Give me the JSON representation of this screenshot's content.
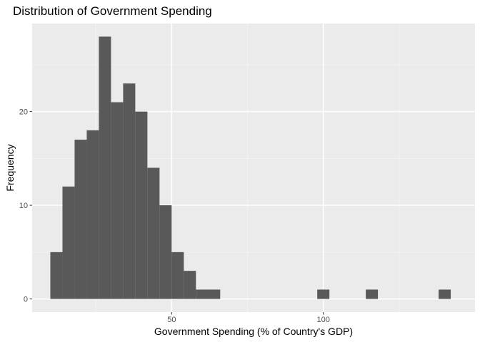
{
  "chart_data": {
    "type": "bar",
    "subtype": "histogram",
    "title": "Distribution of Government Spending",
    "xlabel": "Government Spending (% of Country's GDP)",
    "ylabel": "Frequency",
    "xlim": [
      4,
      150
    ],
    "ylim": [
      -1.4,
      29.4
    ],
    "x_ticks": [
      50,
      100
    ],
    "y_ticks": [
      0,
      10,
      20
    ],
    "x_tick_labels": [
      "50",
      "100"
    ],
    "y_tick_labels": [
      "0",
      "10",
      "20"
    ],
    "bin_width": 4,
    "grid": true,
    "legend": "none",
    "colors": {
      "bar": "#595959",
      "panel": "#ebebeb",
      "grid_major": "#ffffff",
      "grid_minor": "#f5f5f5",
      "tick_label": "#4d4d4d"
    },
    "bins": [
      {
        "x0": 10,
        "x1": 14,
        "count": 5
      },
      {
        "x0": 14,
        "x1": 18,
        "count": 12
      },
      {
        "x0": 18,
        "x1": 22,
        "count": 17
      },
      {
        "x0": 22,
        "x1": 26,
        "count": 18
      },
      {
        "x0": 26,
        "x1": 30,
        "count": 28
      },
      {
        "x0": 30,
        "x1": 34,
        "count": 21
      },
      {
        "x0": 34,
        "x1": 38,
        "count": 23
      },
      {
        "x0": 38,
        "x1": 42,
        "count": 20
      },
      {
        "x0": 42,
        "x1": 46,
        "count": 14
      },
      {
        "x0": 46,
        "x1": 50,
        "count": 10
      },
      {
        "x0": 50,
        "x1": 54,
        "count": 5
      },
      {
        "x0": 54,
        "x1": 58,
        "count": 3
      },
      {
        "x0": 58,
        "x1": 66,
        "count": 1
      },
      {
        "x0": 98,
        "x1": 102,
        "count": 1
      },
      {
        "x0": 114,
        "x1": 118,
        "count": 1
      },
      {
        "x0": 138,
        "x1": 142,
        "count": 1
      }
    ]
  }
}
